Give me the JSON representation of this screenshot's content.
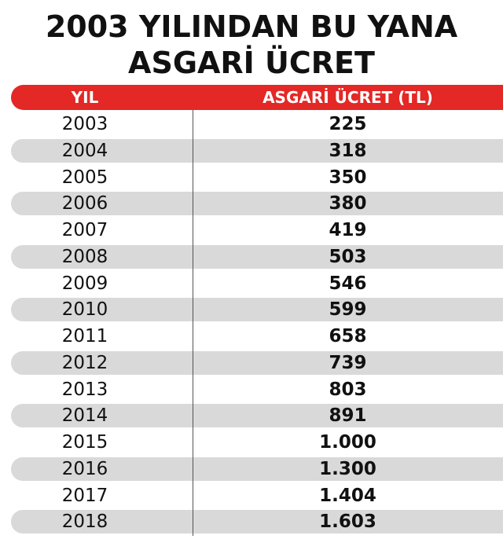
{
  "header": {
    "title_line1": "2003 YILINDAN BU YANA",
    "title_line2": "ASGARİ ÜCRET"
  },
  "table": {
    "columns": [
      "YIL",
      "ASGARİ ÜCRET (TL)"
    ],
    "rows": [
      [
        "2003",
        "225"
      ],
      [
        "2004",
        "318"
      ],
      [
        "2005",
        "350"
      ],
      [
        "2006",
        "380"
      ],
      [
        "2007",
        "419"
      ],
      [
        "2008",
        "503"
      ],
      [
        "2009",
        "546"
      ],
      [
        "2010",
        "599"
      ],
      [
        "2011",
        "658"
      ],
      [
        "2012",
        "739"
      ],
      [
        "2013",
        "803"
      ],
      [
        "2014",
        "891"
      ],
      [
        "2015",
        "1.000"
      ],
      [
        "2016",
        "1.300"
      ],
      [
        "2017",
        "1.404"
      ],
      [
        "2018",
        "1.603"
      ]
    ]
  }
}
